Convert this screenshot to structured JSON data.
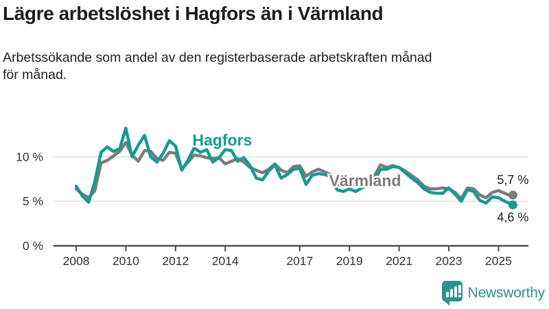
{
  "header": {
    "title": "Lägre arbetslöshet i Hagfors än i Värmland",
    "subtitle": "Arbetssökande som andel av den registerbaserade arbetskraften månad\nför månad."
  },
  "branding": {
    "logo_text": "Newsworthy",
    "logo_color": "#2E938A",
    "logo_icon": "bar-chart-speech-bubble"
  },
  "chart_data": {
    "type": "line",
    "title": "Lägre arbetslöshet i Hagfors än i Värmland",
    "xlabel": "",
    "ylabel": "",
    "unit": "%",
    "grid": "horizontal",
    "legend_position": "inline-labels",
    "xlim": [
      2007.9,
      2026.3
    ],
    "ylim": [
      0,
      14.5
    ],
    "colors": {
      "hagfors": "#169B8F",
      "varmland": "#7C7C7C",
      "axis": "#4d4d4d",
      "gridline": "#e2e2e2",
      "tick_label": "#333333",
      "end_label": "#1d1d1d"
    },
    "y_ticks": [
      {
        "value": 0,
        "label": "0 %"
      },
      {
        "value": 5,
        "label": "5 %"
      },
      {
        "value": 10,
        "label": "10 %"
      }
    ],
    "x_ticks": [
      {
        "value": 2008,
        "label": "2008"
      },
      {
        "value": 2010,
        "label": "2010"
      },
      {
        "value": 2012,
        "label": "2012"
      },
      {
        "value": 2014,
        "label": "2014"
      },
      {
        "value": 2017,
        "label": "2017"
      },
      {
        "value": 2019,
        "label": "2019"
      },
      {
        "value": 2021,
        "label": "2021"
      },
      {
        "value": 2023,
        "label": "2023"
      },
      {
        "value": 2025,
        "label": "2025"
      }
    ],
    "x": [
      2008,
      2008.25,
      2008.5,
      2008.75,
      2009,
      2009.25,
      2009.5,
      2009.75,
      2010,
      2010.25,
      2010.5,
      2010.75,
      2011,
      2011.25,
      2011.5,
      2011.75,
      2012,
      2012.25,
      2012.5,
      2012.75,
      2013,
      2013.25,
      2013.5,
      2013.75,
      2014,
      2014.25,
      2014.5,
      2014.75,
      2015,
      2015.25,
      2015.5,
      2015.75,
      2016,
      2016.25,
      2016.5,
      2016.75,
      2017,
      2017.25,
      2017.5,
      2017.75,
      2018,
      2018.25,
      2018.5,
      2018.75,
      2019,
      2019.25,
      2019.5,
      2019.75,
      2020,
      2020.25,
      2020.5,
      2020.75,
      2021,
      2021.25,
      2021.5,
      2021.75,
      2022,
      2022.25,
      2022.5,
      2022.75,
      2023,
      2023.25,
      2023.5,
      2023.75,
      2024,
      2024.25,
      2024.5,
      2024.75,
      2025,
      2025.25,
      2025.5,
      2025.58
    ],
    "series": [
      {
        "name": "Värmland",
        "color": "#7C7C7C",
        "end_label": "5,7 %",
        "end_label_position": "above",
        "label_pos": {
          "x": 2019.63,
          "y": 7.32
        },
        "values": [
          6.4,
          5.8,
          5.4,
          6.2,
          9.3,
          9.6,
          10.1,
          10.6,
          11.6,
          10.2,
          9.5,
          10.7,
          10.6,
          9.8,
          9.6,
          10.5,
          10.4,
          8.6,
          9.4,
          10.2,
          10.1,
          9.9,
          9.8,
          9.9,
          9.2,
          9.5,
          9.8,
          9.4,
          8.8,
          8.5,
          8.2,
          8.6,
          9.2,
          8.5,
          8.2,
          8.9,
          9.0,
          7.8,
          8.3,
          8.6,
          8.3,
          8.0,
          6.9,
          6.7,
          6.9,
          6.8,
          7.0,
          7.2,
          7.8,
          9.1,
          8.8,
          9.0,
          8.8,
          8.4,
          7.9,
          7.4,
          6.7,
          6.4,
          6.4,
          6.5,
          6.4,
          6.0,
          5.3,
          6.5,
          6.4,
          5.7,
          5.4,
          6.0,
          6.2,
          5.9,
          5.6,
          5.7
        ]
      },
      {
        "name": "Hagfors",
        "color": "#169B8F",
        "end_label": "4,6 %",
        "end_label_position": "below",
        "label_pos": {
          "x": 2013.88,
          "y": 11.87
        },
        "values": [
          6.7,
          5.6,
          4.9,
          7.2,
          10.5,
          11.1,
          10.6,
          10.9,
          13.2,
          10.0,
          11.3,
          12.4,
          10.0,
          9.4,
          10.4,
          11.8,
          11.2,
          8.5,
          9.6,
          11.0,
          10.5,
          10.8,
          9.4,
          9.9,
          10.8,
          10.7,
          9.5,
          9.9,
          9.0,
          7.6,
          7.4,
          8.4,
          9.1,
          7.6,
          8.0,
          8.6,
          8.7,
          6.9,
          7.9,
          8.1,
          8.0,
          7.8,
          6.3,
          6.1,
          6.4,
          6.1,
          6.5,
          6.8,
          7.3,
          8.6,
          8.6,
          8.9,
          8.8,
          8.2,
          7.6,
          7.1,
          6.4,
          6.0,
          5.9,
          5.9,
          6.5,
          5.8,
          5.0,
          6.3,
          6.1,
          5.1,
          4.8,
          5.5,
          5.4,
          5.0,
          4.7,
          4.6
        ]
      }
    ]
  }
}
